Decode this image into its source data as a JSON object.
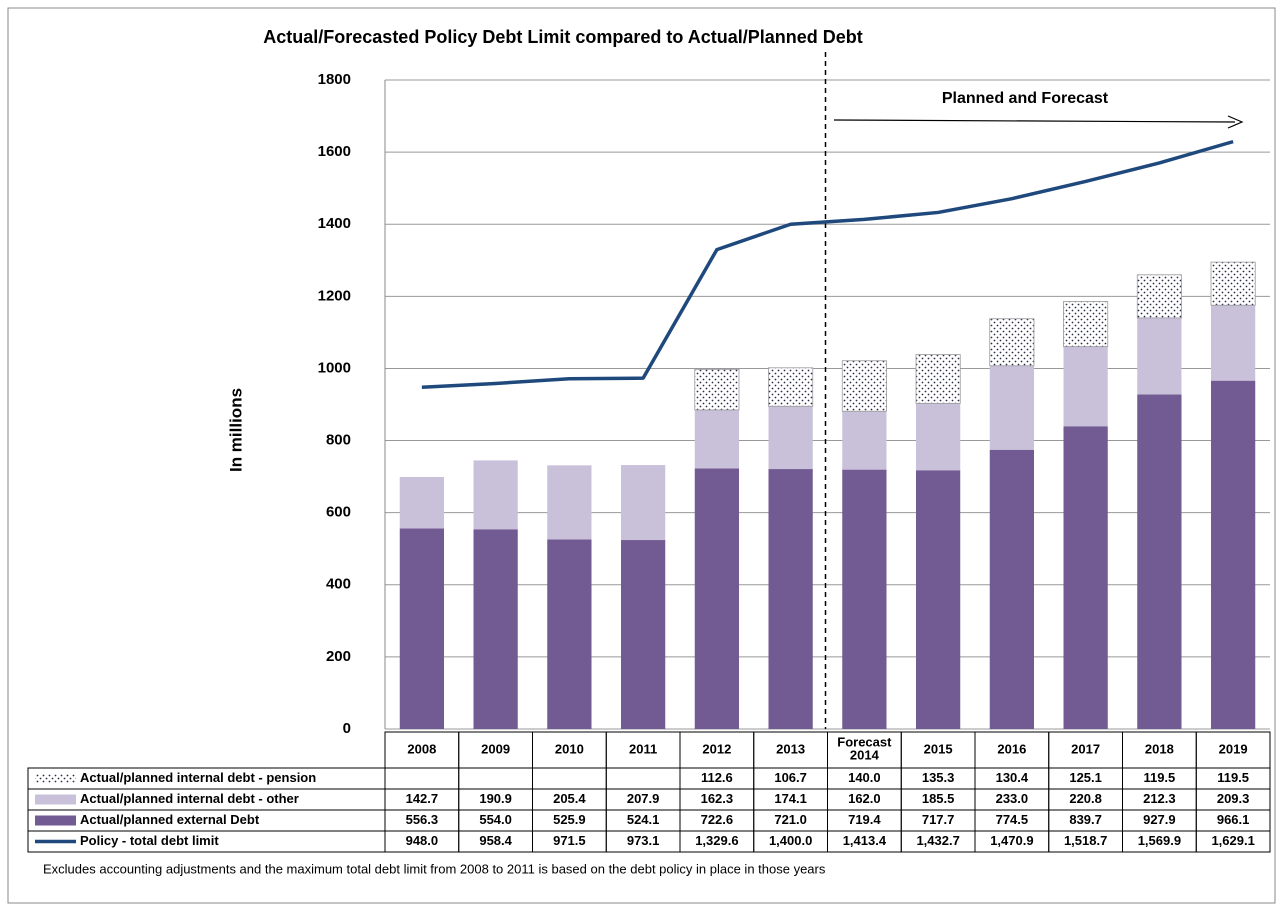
{
  "chart_data": {
    "type": "bar",
    "title": "Actual/Forecasted Policy Debt Limit compared to Actual/Planned Debt",
    "y_label": "In millions",
    "annotation": "Planned and Forecast",
    "footnote": "Excludes accounting adjustments and the maximum total debt limit from 2008 to 2011 is based on the debt policy in place in those years",
    "categories": [
      "2008",
      "2009",
      "2010",
      "2011",
      "2012",
      "2013",
      "Forecast 2014",
      "2015",
      "2016",
      "2017",
      "2018",
      "2019"
    ],
    "ylim": [
      0,
      1800
    ],
    "yticks": [
      0,
      200,
      400,
      600,
      800,
      1000,
      1200,
      1400,
      1600,
      1800
    ],
    "grid": true,
    "series": [
      {
        "name": "Actual/planned internal debt - pension",
        "type": "bar",
        "color": "#ffffff",
        "pattern": "dots",
        "values": [
          null,
          null,
          null,
          null,
          112.6,
          106.7,
          140.0,
          135.3,
          130.4,
          125.1,
          119.5,
          119.5
        ],
        "value_labels": [
          null,
          null,
          null,
          null,
          "112.6",
          "106.7",
          "140.0",
          "135.3",
          "130.4",
          "125.1",
          "119.5",
          "119.5"
        ]
      },
      {
        "name": "Actual/planned internal debt - other",
        "type": "bar",
        "color": "#c9c0da",
        "values": [
          142.7,
          190.9,
          205.4,
          207.9,
          162.3,
          174.1,
          162.0,
          185.5,
          233.0,
          220.8,
          212.3,
          209.3
        ],
        "value_labels": [
          "142.7",
          "190.9",
          "205.4",
          "207.9",
          "162.3",
          "174.1",
          "162.0",
          "185.5",
          "233.0",
          "220.8",
          "212.3",
          "209.3"
        ]
      },
      {
        "name": "Actual/planned external Debt",
        "type": "bar",
        "color": "#725a92",
        "values": [
          556.3,
          554.0,
          525.9,
          524.1,
          722.6,
          721.0,
          719.4,
          717.7,
          774.5,
          839.7,
          927.9,
          966.1
        ],
        "value_labels": [
          "556.3",
          "554.0",
          "525.9",
          "524.1",
          "722.6",
          "721.0",
          "719.4",
          "717.7",
          "774.5",
          "839.7",
          "927.9",
          "966.1"
        ]
      },
      {
        "name": "Policy - total debt limit",
        "type": "line",
        "color": "#1f497d",
        "values": [
          948.0,
          958.4,
          971.5,
          973.1,
          1329.6,
          1400.0,
          1413.4,
          1432.7,
          1470.9,
          1518.7,
          1569.9,
          1629.1
        ],
        "value_labels": [
          "948.0",
          "958.4",
          "971.5",
          "973.1",
          "1,329.6",
          "1,400.0",
          "1,413.4",
          "1,432.7",
          "1,470.9",
          "1,518.7",
          "1,569.9",
          "1,629.1"
        ]
      }
    ]
  }
}
